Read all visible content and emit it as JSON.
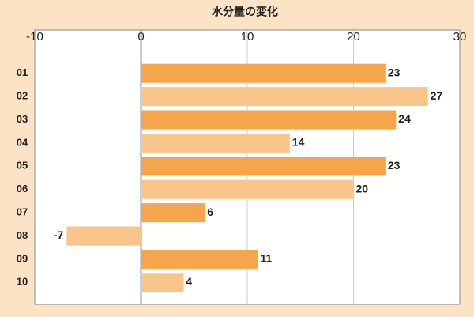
{
  "chart_data": {
    "type": "hbar",
    "title": "水分量の変化",
    "categories": [
      "01",
      "02",
      "03",
      "04",
      "05",
      "06",
      "07",
      "08",
      "09",
      "10"
    ],
    "values": [
      23,
      27,
      24,
      14,
      23,
      20,
      6,
      -7,
      11,
      4
    ],
    "colors": [
      "#f5a64c",
      "#f9c58a",
      "#f5a64c",
      "#f9c58a",
      "#f5a64c",
      "#f9c58a",
      "#f5a64c",
      "#f9c58a",
      "#f5a64c",
      "#f9c58a"
    ],
    "xlim": [
      -10,
      30
    ],
    "xticks": [
      -10,
      0,
      10,
      20,
      30
    ],
    "grid": true
  }
}
